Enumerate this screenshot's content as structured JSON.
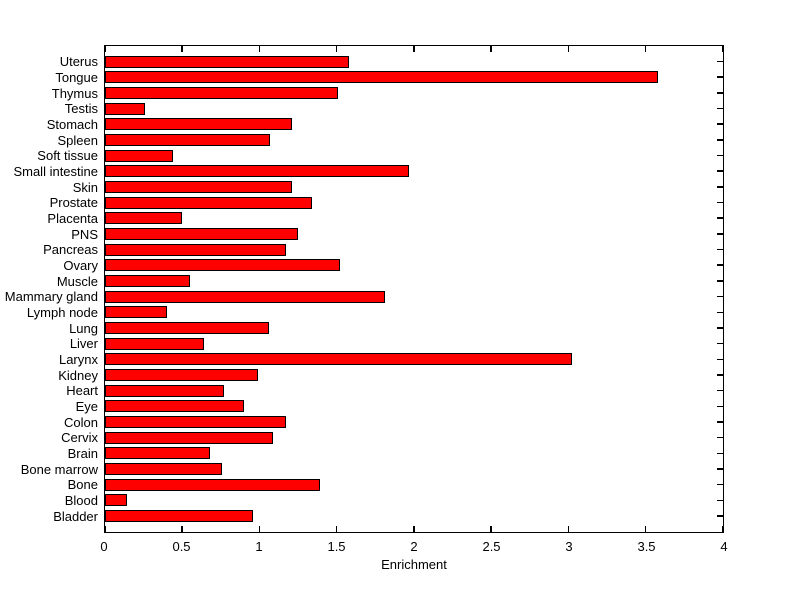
{
  "figure": {
    "background": "#ffffff",
    "axes_color": "#000000"
  },
  "chart_data": {
    "type": "bar",
    "orientation": "horizontal",
    "title": "",
    "xlabel": "Enrichment",
    "ylabel": "",
    "xlim": [
      0,
      4
    ],
    "xticks": [
      0,
      0.5,
      1,
      1.5,
      2,
      2.5,
      3,
      3.5,
      4
    ],
    "xtick_labels": [
      "0",
      "0.5",
      "1",
      "1.5",
      "2",
      "2.5",
      "3",
      "3.5",
      "4"
    ],
    "grid": false,
    "legend": null,
    "bar_color": "#ff0000",
    "bar_edge_color": "#000000",
    "categories": [
      "Uterus",
      "Tongue",
      "Thymus",
      "Testis",
      "Stomach",
      "Spleen",
      "Soft tissue",
      "Small intestine",
      "Skin",
      "Prostate",
      "Placenta",
      "PNS",
      "Pancreas",
      "Ovary",
      "Muscle",
      "Mammary gland",
      "Lymph node",
      "Lung",
      "Liver",
      "Larynx",
      "Kidney",
      "Heart",
      "Eye",
      "Colon",
      "Cervix",
      "Brain",
      "Bone marrow",
      "Bone",
      "Blood",
      "Bladder"
    ],
    "values": [
      1.58,
      3.58,
      1.51,
      0.26,
      1.21,
      1.07,
      0.44,
      1.97,
      1.21,
      1.34,
      0.5,
      1.25,
      1.17,
      1.52,
      0.55,
      1.81,
      0.4,
      1.06,
      0.64,
      3.02,
      0.99,
      0.77,
      0.9,
      1.17,
      1.09,
      0.68,
      0.76,
      1.39,
      0.14,
      0.96
    ],
    "category_order_note": "listed top to bottom as displayed"
  }
}
